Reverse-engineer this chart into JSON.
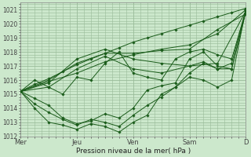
{
  "background_color": "#cce8cc",
  "grid_color": "#99bb99",
  "line_color": "#1a5c1a",
  "marker_color": "#1a5c1a",
  "xlabel_text": "Pression niveau de la mer( hPa )",
  "ylim": [
    1012,
    1021.5
  ],
  "yticks": [
    1012,
    1013,
    1014,
    1015,
    1016,
    1017,
    1018,
    1019,
    1020,
    1021
  ],
  "xtick_labels": [
    "Mer",
    "Jeu",
    "Ven",
    "Sam",
    "D"
  ],
  "xtick_positions": [
    0,
    24,
    48,
    72,
    96
  ],
  "total_hours": 96,
  "series": [
    [
      0,
      1015.2,
      6,
      1015.7,
      12,
      1016.1,
      18,
      1016.6,
      24,
      1017.1,
      30,
      1017.5,
      36,
      1017.9,
      42,
      1018.3,
      48,
      1018.7,
      54,
      1019.0,
      60,
      1019.3,
      66,
      1019.6,
      72,
      1019.9,
      78,
      1020.2,
      84,
      1020.5,
      90,
      1020.8,
      96,
      1021.1
    ],
    [
      0,
      1015.2,
      12,
      1015.9,
      24,
      1016.5,
      36,
      1017.3,
      48,
      1017.8,
      60,
      1018.2,
      72,
      1018.5,
      84,
      1019.3,
      96,
      1021.0
    ],
    [
      0,
      1015.2,
      12,
      1016.0,
      24,
      1017.2,
      36,
      1017.9,
      48,
      1017.9,
      60,
      1018.1,
      72,
      1018.2,
      84,
      1019.6,
      96,
      1020.7
    ],
    [
      0,
      1015.2,
      12,
      1015.8,
      24,
      1017.5,
      36,
      1018.2,
      48,
      1017.5,
      60,
      1017.2,
      72,
      1017.0,
      84,
      1017.2,
      96,
      1020.9
    ],
    [
      0,
      1015.2,
      12,
      1015.5,
      24,
      1016.8,
      36,
      1017.7,
      48,
      1016.8,
      60,
      1016.5,
      72,
      1017.0,
      78,
      1017.3,
      84,
      1016.8,
      90,
      1016.8,
      96,
      1020.8
    ],
    [
      0,
      1015.2,
      6,
      1016.0,
      12,
      1015.5,
      18,
      1015.0,
      24,
      1016.2,
      30,
      1016.0,
      36,
      1017.2,
      42,
      1018.0,
      48,
      1016.5,
      54,
      1016.2,
      60,
      1016.0,
      66,
      1017.5,
      72,
      1018.0,
      78,
      1018.2,
      84,
      1017.8,
      90,
      1017.5,
      96,
      1020.9
    ],
    [
      0,
      1015.2,
      6,
      1014.7,
      12,
      1014.2,
      18,
      1013.3,
      24,
      1012.9,
      30,
      1013.1,
      36,
      1013.6,
      42,
      1013.3,
      48,
      1014.0,
      54,
      1015.3,
      60,
      1015.6,
      66,
      1015.8,
      72,
      1017.5,
      78,
      1018.0,
      84,
      1017.0,
      90,
      1016.8,
      96,
      1020.9
    ],
    [
      0,
      1015.2,
      6,
      1014.0,
      12,
      1013.0,
      18,
      1012.8,
      24,
      1012.5,
      30,
      1012.9,
      36,
      1012.7,
      42,
      1012.3,
      48,
      1013.0,
      54,
      1013.5,
      60,
      1015.0,
      66,
      1015.5,
      72,
      1016.2,
      78,
      1016.0,
      84,
      1015.5,
      90,
      1016.0,
      96,
      1021.0
    ],
    [
      0,
      1015.2,
      6,
      1014.3,
      12,
      1013.7,
      18,
      1013.2,
      24,
      1012.8,
      30,
      1013.2,
      36,
      1013.0,
      42,
      1012.7,
      48,
      1013.5,
      54,
      1014.2,
      60,
      1014.8,
      66,
      1015.5,
      72,
      1016.5,
      78,
      1017.2,
      84,
      1016.8,
      90,
      1017.2,
      96,
      1021.0
    ]
  ]
}
